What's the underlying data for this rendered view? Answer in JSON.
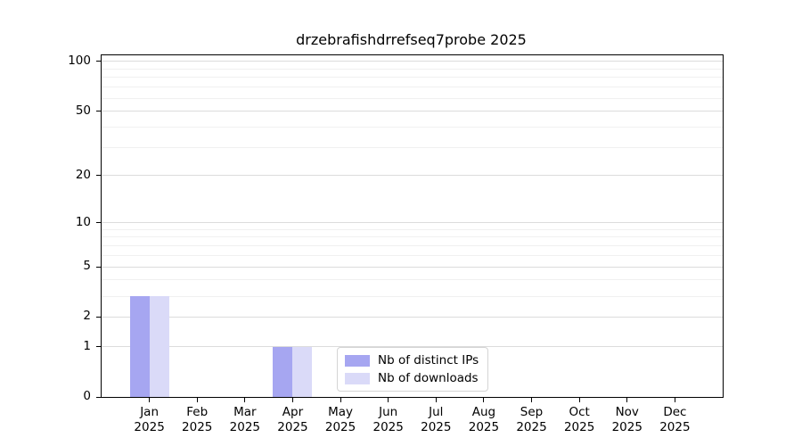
{
  "chart_data": {
    "type": "bar",
    "title": "drzebrafishdrrefseq7probe 2025",
    "yscale": "log10(1+y)",
    "ylim": [
      0,
      109
    ],
    "ytick_values": [
      0,
      1,
      2,
      5,
      10,
      20,
      50,
      100
    ],
    "ytick_labels": [
      "0",
      "1",
      "2",
      "5",
      "10",
      "20",
      "50",
      "100"
    ],
    "minor_ytick_values": [
      3,
      4,
      6,
      7,
      8,
      9,
      30,
      40,
      60,
      70,
      80,
      90
    ],
    "grid": "horizontal, major and minor, on",
    "categories": [
      "Jan",
      "Feb",
      "Mar",
      "Apr",
      "May",
      "Jun",
      "Jul",
      "Aug",
      "Sep",
      "Oct",
      "Nov",
      "Dec"
    ],
    "category_year": "2025",
    "series": [
      {
        "name": "Nb of distinct IPs",
        "color": "#a6a6f1",
        "values": [
          3,
          0,
          0,
          1,
          0,
          0,
          0,
          0,
          0,
          0,
          0,
          0
        ]
      },
      {
        "name": "Nb of downloads",
        "color": "#dadaf8",
        "values": [
          3,
          0,
          0,
          1,
          0,
          0,
          0,
          0,
          0,
          0,
          0,
          0
        ]
      }
    ],
    "legend_position": "inside bottom-center",
    "axis_color": "#000000",
    "grid_major_color": "#dcdcdc",
    "grid_minor_color": "#f0f0f0",
    "background_color": "#ffffff"
  }
}
